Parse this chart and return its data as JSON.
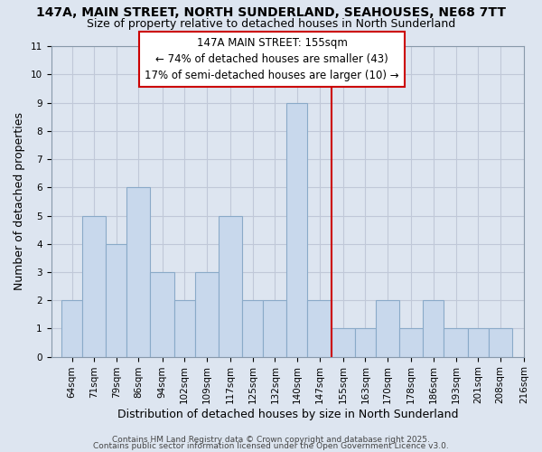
{
  "title_line1": "147A, MAIN STREET, NORTH SUNDERLAND, SEAHOUSES, NE68 7TT",
  "title_line2": "Size of property relative to detached houses in North Sunderland",
  "xlabel": "Distribution of detached houses by size in North Sunderland",
  "ylabel": "Number of detached properties",
  "bar_labels": [
    "64sqm",
    "71sqm",
    "79sqm",
    "86sqm",
    "94sqm",
    "102sqm",
    "109sqm",
    "117sqm",
    "125sqm",
    "132sqm",
    "140sqm",
    "147sqm",
    "155sqm",
    "163sqm",
    "170sqm",
    "178sqm",
    "186sqm",
    "193sqm",
    "201sqm",
    "208sqm",
    "216sqm"
  ],
  "bar_values": [
    2,
    5,
    4,
    6,
    3,
    2,
    3,
    5,
    2,
    2,
    9,
    2,
    1,
    1,
    2,
    1,
    2,
    1,
    1,
    1
  ],
  "bin_edges": [
    64,
    71,
    79,
    86,
    94,
    102,
    109,
    117,
    125,
    132,
    140,
    147,
    155,
    163,
    170,
    178,
    186,
    193,
    201,
    208,
    216
  ],
  "bar_color": "#c8d8ec",
  "bar_edge_color": "#8aaac8",
  "vline_x": 155,
  "vline_color": "#cc0000",
  "annotation_text": "147A MAIN STREET: 155sqm\n← 74% of detached houses are smaller (43)\n17% of semi-detached houses are larger (10) →",
  "annotation_box_color": "#ffffff",
  "annotation_box_edge_color": "#cc0000",
  "ylim": [
    0,
    11
  ],
  "yticks": [
    0,
    1,
    2,
    3,
    4,
    5,
    6,
    7,
    8,
    9,
    10,
    11
  ],
  "grid_color": "#c0c8d8",
  "background_color": "#dde5f0",
  "footer_line1": "Contains HM Land Registry data © Crown copyright and database right 2025.",
  "footer_line2": "Contains public sector information licensed under the Open Government Licence v3.0.",
  "title_fontsize": 10,
  "subtitle_fontsize": 9,
  "axis_label_fontsize": 9,
  "tick_fontsize": 7.5,
  "annotation_fontsize": 8.5,
  "footer_fontsize": 6.5
}
